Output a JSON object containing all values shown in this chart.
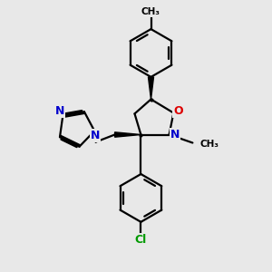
{
  "background_color": "#e8e8e8",
  "bond_color": "#000000",
  "bond_width": 1.6,
  "atom_colors": {
    "N": "#0000cc",
    "O": "#dd0000",
    "Cl": "#009900",
    "C": "#000000"
  },
  "font_size_atom": 8.5,
  "title": ""
}
